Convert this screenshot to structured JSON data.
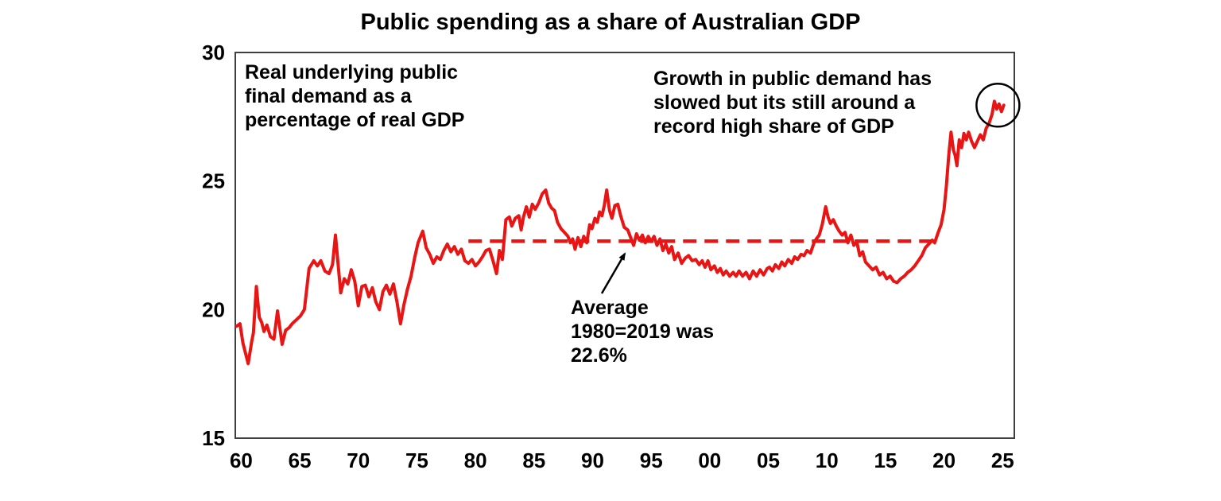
{
  "title": "Public spending as a share of Australian GDP",
  "annotations": {
    "left_note": {
      "lines": [
        "Real underlying public",
        "final demand as a",
        "percentage of real GDP"
      ]
    },
    "right_note": {
      "lines": [
        "Growth in public demand has",
        "slowed but its still around a",
        "record high share of GDP"
      ]
    },
    "avg_note": {
      "lines": [
        "Average",
        "1980=2019 was",
        "22.6%"
      ]
    }
  },
  "colors": {
    "line": "#e91414",
    "text": "#000000",
    "border": "#3f3f3f",
    "background": "#ffffff"
  },
  "chart_data": {
    "type": "line",
    "title": "Public spending as a share of Australian GDP",
    "xlabel": "",
    "ylabel": "",
    "grid": false,
    "legend": "none",
    "xlim": [
      1959.5,
      2026
    ],
    "ylim": [
      15,
      30
    ],
    "y_ticks": [
      {
        "label": "30",
        "value": 30
      },
      {
        "label": "25",
        "value": 25
      },
      {
        "label": "20",
        "value": 20
      },
      {
        "label": "15",
        "value": 15
      }
    ],
    "x_ticks": [
      {
        "label": "60",
        "year": 1960
      },
      {
        "label": "65",
        "year": 1965
      },
      {
        "label": "70",
        "year": 1970
      },
      {
        "label": "75",
        "year": 1975
      },
      {
        "label": "80",
        "year": 1980
      },
      {
        "label": "85",
        "year": 1985
      },
      {
        "label": "90",
        "year": 1990
      },
      {
        "label": "95",
        "year": 1995
      },
      {
        "label": "00",
        "year": 2000
      },
      {
        "label": "05",
        "year": 2005
      },
      {
        "label": "10",
        "year": 2010
      },
      {
        "label": "15",
        "year": 2015
      },
      {
        "label": "20",
        "year": 2020
      },
      {
        "label": "25",
        "year": 2025
      }
    ],
    "average_line": {
      "value": 22.6,
      "from_year": 1979.4,
      "to_year": 2019.3,
      "style": "dashed",
      "color": "#e91414",
      "label": "Average 1980=2019 was 22.6%"
    },
    "record_circle": {
      "year": 2024.6,
      "value": 27.95
    },
    "series": [
      {
        "name": "Real underlying public final demand as a percentage of real GDP",
        "color": "#e91414",
        "points": [
          [
            1959.6,
            19.35
          ],
          [
            1959.9,
            19.45
          ],
          [
            1960.15,
            18.7
          ],
          [
            1960.6,
            17.9
          ],
          [
            1960.9,
            18.75
          ],
          [
            1961.05,
            19.1
          ],
          [
            1961.3,
            20.9
          ],
          [
            1961.55,
            19.7
          ],
          [
            1961.75,
            19.5
          ],
          [
            1961.95,
            19.15
          ],
          [
            1962.2,
            19.4
          ],
          [
            1962.5,
            18.95
          ],
          [
            1962.8,
            18.85
          ],
          [
            1963.1,
            19.95
          ],
          [
            1963.5,
            18.65
          ],
          [
            1963.8,
            19.2
          ],
          [
            1964.1,
            19.3
          ],
          [
            1964.35,
            19.45
          ],
          [
            1964.7,
            19.6
          ],
          [
            1965.05,
            19.75
          ],
          [
            1965.4,
            20.0
          ],
          [
            1965.8,
            21.6
          ],
          [
            1966.2,
            21.9
          ],
          [
            1966.5,
            21.7
          ],
          [
            1966.8,
            21.9
          ],
          [
            1967.15,
            21.5
          ],
          [
            1967.5,
            21.4
          ],
          [
            1967.8,
            21.75
          ],
          [
            1968.05,
            22.9
          ],
          [
            1968.5,
            20.65
          ],
          [
            1968.8,
            21.2
          ],
          [
            1969.1,
            21.0
          ],
          [
            1969.4,
            21.55
          ],
          [
            1969.7,
            21.1
          ],
          [
            1970.0,
            20.15
          ],
          [
            1970.3,
            20.9
          ],
          [
            1970.6,
            20.95
          ],
          [
            1970.9,
            20.5
          ],
          [
            1971.2,
            20.85
          ],
          [
            1971.5,
            20.3
          ],
          [
            1971.8,
            20.0
          ],
          [
            1972.1,
            20.7
          ],
          [
            1972.4,
            20.95
          ],
          [
            1972.7,
            20.6
          ],
          [
            1973.0,
            21.0
          ],
          [
            1973.3,
            20.3
          ],
          [
            1973.6,
            19.45
          ],
          [
            1973.9,
            20.2
          ],
          [
            1974.2,
            20.8
          ],
          [
            1974.5,
            21.3
          ],
          [
            1974.8,
            22.0
          ],
          [
            1975.1,
            22.6
          ],
          [
            1975.5,
            23.05
          ],
          [
            1975.8,
            22.4
          ],
          [
            1976.1,
            22.15
          ],
          [
            1976.4,
            21.8
          ],
          [
            1976.7,
            22.05
          ],
          [
            1977.0,
            21.95
          ],
          [
            1977.3,
            22.3
          ],
          [
            1977.6,
            22.55
          ],
          [
            1977.9,
            22.25
          ],
          [
            1978.2,
            22.45
          ],
          [
            1978.5,
            22.15
          ],
          [
            1978.8,
            22.35
          ],
          [
            1979.1,
            21.9
          ],
          [
            1979.4,
            21.8
          ],
          [
            1979.7,
            21.95
          ],
          [
            1980.0,
            21.7
          ],
          [
            1980.3,
            21.85
          ],
          [
            1980.6,
            22.05
          ],
          [
            1980.9,
            22.3
          ],
          [
            1981.2,
            22.35
          ],
          [
            1981.5,
            21.9
          ],
          [
            1981.8,
            21.4
          ],
          [
            1982.05,
            22.3
          ],
          [
            1982.3,
            21.95
          ],
          [
            1982.6,
            23.5
          ],
          [
            1982.9,
            23.6
          ],
          [
            1983.1,
            23.25
          ],
          [
            1983.4,
            23.55
          ],
          [
            1983.7,
            23.65
          ],
          [
            1983.9,
            23.1
          ],
          [
            1984.1,
            23.6
          ],
          [
            1984.35,
            24.0
          ],
          [
            1984.6,
            23.6
          ],
          [
            1984.85,
            24.1
          ],
          [
            1985.1,
            23.9
          ],
          [
            1985.4,
            24.15
          ],
          [
            1985.7,
            24.5
          ],
          [
            1986.0,
            24.65
          ],
          [
            1986.25,
            24.15
          ],
          [
            1986.5,
            23.95
          ],
          [
            1986.75,
            23.85
          ],
          [
            1987.0,
            23.4
          ],
          [
            1987.3,
            23.15
          ],
          [
            1987.6,
            23.0
          ],
          [
            1987.9,
            22.85
          ],
          [
            1988.1,
            22.6
          ],
          [
            1988.3,
            22.75
          ],
          [
            1988.5,
            22.35
          ],
          [
            1988.75,
            22.8
          ],
          [
            1989.0,
            22.45
          ],
          [
            1989.25,
            22.85
          ],
          [
            1989.5,
            22.6
          ],
          [
            1989.75,
            23.3
          ],
          [
            1989.95,
            23.15
          ],
          [
            1990.2,
            23.55
          ],
          [
            1990.4,
            23.4
          ],
          [
            1990.6,
            23.8
          ],
          [
            1990.8,
            23.65
          ],
          [
            1991.0,
            24.05
          ],
          [
            1991.2,
            24.65
          ],
          [
            1991.45,
            23.85
          ],
          [
            1991.65,
            23.55
          ],
          [
            1991.9,
            24.05
          ],
          [
            1992.15,
            24.1
          ],
          [
            1992.4,
            23.65
          ],
          [
            1992.7,
            23.2
          ],
          [
            1993.0,
            23.1
          ],
          [
            1993.25,
            22.8
          ],
          [
            1993.5,
            22.5
          ],
          [
            1993.75,
            22.95
          ],
          [
            1994.0,
            22.7
          ],
          [
            1994.25,
            22.9
          ],
          [
            1994.5,
            22.6
          ],
          [
            1994.75,
            22.85
          ],
          [
            1995.0,
            22.65
          ],
          [
            1995.25,
            22.85
          ],
          [
            1995.5,
            22.5
          ],
          [
            1995.75,
            22.75
          ],
          [
            1996.0,
            22.3
          ],
          [
            1996.25,
            22.55
          ],
          [
            1996.5,
            22.2
          ],
          [
            1996.75,
            22.45
          ],
          [
            1997.0,
            21.95
          ],
          [
            1997.3,
            22.2
          ],
          [
            1997.6,
            21.8
          ],
          [
            1997.9,
            22.0
          ],
          [
            1998.2,
            22.1
          ],
          [
            1998.5,
            21.9
          ],
          [
            1998.8,
            21.95
          ],
          [
            1999.1,
            21.75
          ],
          [
            1999.35,
            21.9
          ],
          [
            1999.6,
            21.65
          ],
          [
            1999.85,
            21.9
          ],
          [
            2000.1,
            21.55
          ],
          [
            2000.4,
            21.7
          ],
          [
            2000.65,
            21.45
          ],
          [
            2000.9,
            21.6
          ],
          [
            2001.15,
            21.35
          ],
          [
            2001.4,
            21.5
          ],
          [
            2001.7,
            21.3
          ],
          [
            2002.0,
            21.45
          ],
          [
            2002.25,
            21.3
          ],
          [
            2002.5,
            21.5
          ],
          [
            2002.8,
            21.3
          ],
          [
            2003.1,
            21.45
          ],
          [
            2003.4,
            21.2
          ],
          [
            2003.7,
            21.5
          ],
          [
            2004.0,
            21.3
          ],
          [
            2004.3,
            21.55
          ],
          [
            2004.6,
            21.35
          ],
          [
            2004.9,
            21.6
          ],
          [
            2005.1,
            21.65
          ],
          [
            2005.35,
            21.5
          ],
          [
            2005.6,
            21.75
          ],
          [
            2005.9,
            21.6
          ],
          [
            2006.15,
            21.85
          ],
          [
            2006.4,
            21.7
          ],
          [
            2006.7,
            21.95
          ],
          [
            2007.0,
            21.8
          ],
          [
            2007.25,
            22.05
          ],
          [
            2007.5,
            21.95
          ],
          [
            2007.8,
            22.15
          ],
          [
            2008.05,
            22.1
          ],
          [
            2008.3,
            22.3
          ],
          [
            2008.6,
            22.2
          ],
          [
            2008.9,
            22.6
          ],
          [
            2009.1,
            22.75
          ],
          [
            2009.35,
            22.9
          ],
          [
            2009.6,
            23.3
          ],
          [
            2009.9,
            24.0
          ],
          [
            2010.1,
            23.6
          ],
          [
            2010.3,
            23.35
          ],
          [
            2010.55,
            23.5
          ],
          [
            2010.8,
            23.25
          ],
          [
            2011.05,
            23.05
          ],
          [
            2011.3,
            22.9
          ],
          [
            2011.55,
            23.0
          ],
          [
            2011.8,
            22.6
          ],
          [
            2012.05,
            22.9
          ],
          [
            2012.3,
            22.5
          ],
          [
            2012.55,
            22.65
          ],
          [
            2012.8,
            22.1
          ],
          [
            2013.05,
            22.25
          ],
          [
            2013.3,
            21.85
          ],
          [
            2013.6,
            21.7
          ],
          [
            2013.9,
            21.55
          ],
          [
            2014.2,
            21.65
          ],
          [
            2014.5,
            21.35
          ],
          [
            2014.8,
            21.45
          ],
          [
            2015.1,
            21.2
          ],
          [
            2015.4,
            21.3
          ],
          [
            2015.7,
            21.1
          ],
          [
            2016.0,
            21.05
          ],
          [
            2016.3,
            21.2
          ],
          [
            2016.6,
            21.3
          ],
          [
            2016.9,
            21.45
          ],
          [
            2017.2,
            21.55
          ],
          [
            2017.5,
            21.7
          ],
          [
            2017.8,
            21.9
          ],
          [
            2018.1,
            22.1
          ],
          [
            2018.4,
            22.4
          ],
          [
            2018.7,
            22.55
          ],
          [
            2019.0,
            22.7
          ],
          [
            2019.2,
            22.6
          ],
          [
            2019.5,
            23.0
          ],
          [
            2019.75,
            23.3
          ],
          [
            2020.0,
            23.9
          ],
          [
            2020.2,
            24.8
          ],
          [
            2020.4,
            26.0
          ],
          [
            2020.6,
            26.9
          ],
          [
            2020.8,
            26.2
          ],
          [
            2020.95,
            26.0
          ],
          [
            2021.1,
            25.6
          ],
          [
            2021.3,
            26.6
          ],
          [
            2021.5,
            26.3
          ],
          [
            2021.7,
            26.85
          ],
          [
            2021.9,
            26.6
          ],
          [
            2022.1,
            26.9
          ],
          [
            2022.35,
            26.55
          ],
          [
            2022.6,
            26.3
          ],
          [
            2022.9,
            26.6
          ],
          [
            2023.1,
            26.8
          ],
          [
            2023.35,
            26.6
          ],
          [
            2023.6,
            27.05
          ],
          [
            2023.85,
            27.25
          ],
          [
            2024.1,
            27.6
          ],
          [
            2024.3,
            28.1
          ],
          [
            2024.5,
            27.8
          ],
          [
            2024.7,
            28.0
          ],
          [
            2024.9,
            27.7
          ],
          [
            2025.1,
            27.95
          ]
        ]
      }
    ]
  }
}
